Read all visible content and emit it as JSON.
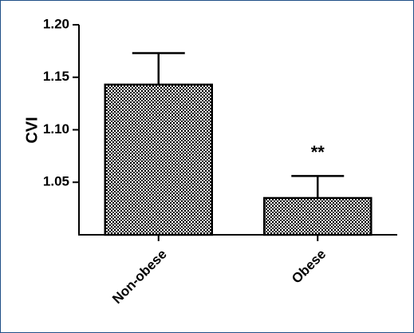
{
  "chart_data": {
    "type": "bar",
    "categories": [
      "Non-obese",
      "Obese"
    ],
    "values": [
      1.143,
      1.035
    ],
    "error_upper": [
      1.173,
      1.056
    ],
    "ylabel": "CVI",
    "xlabel": "",
    "ylim": [
      1.0,
      1.2
    ],
    "yticks": [
      "1.05",
      "1.10",
      "1.15",
      "1.20"
    ],
    "annotations": [
      {
        "category": "Obese",
        "text": "**"
      }
    ],
    "grid": false,
    "bar_fill": "checkerboard",
    "colors": {
      "bar_dark": "#000000",
      "bar_light": "#ffffff",
      "frame_border": "#1f4f87"
    }
  }
}
